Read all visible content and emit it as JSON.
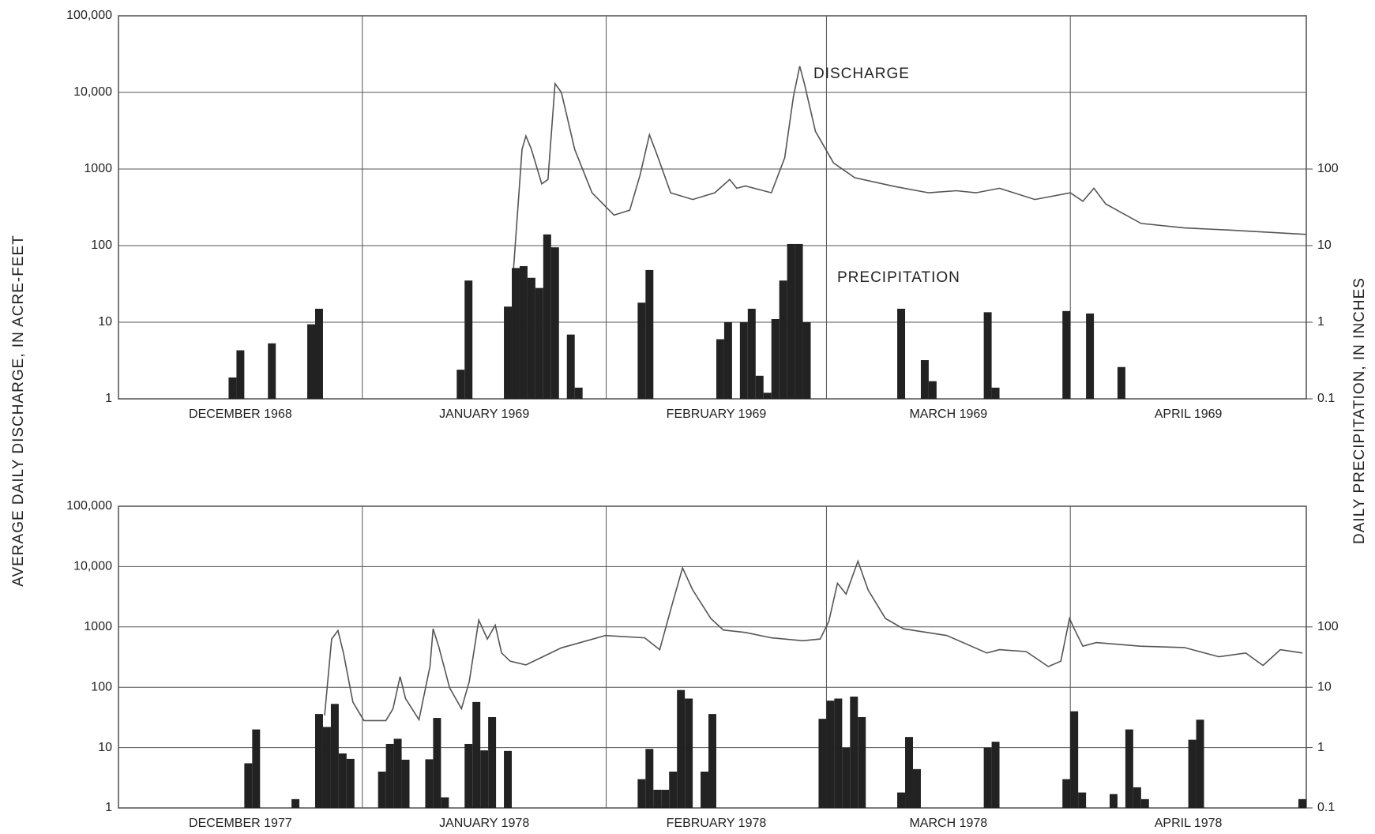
{
  "ylabel": "AVERAGE DAILY DISCHARGE, IN ACRE-FEET",
  "y2label": "DAILY PRECIPITATION, IN INCHES",
  "chart_data": [
    {
      "type": "combo",
      "categories": [
        "DECEMBER 1968",
        "JANUARY 1969",
        "FEBRUARY 1969",
        "MARCH 1969",
        "APRIL 1969"
      ],
      "xlim": [
        0,
        151
      ],
      "xticks": [
        0,
        31,
        62,
        90,
        121,
        151
      ],
      "ylim": [
        1,
        100000
      ],
      "yticks": [
        1,
        10,
        100,
        1000,
        {
          "value": 10000,
          "label": "10,000"
        },
        {
          "value": 100000,
          "label": "100,000"
        }
      ],
      "y2lim": [
        0.1,
        10000
      ],
      "y2ticks": [
        0.1,
        1,
        10,
        100
      ],
      "log_scale": true,
      "grid": true,
      "series": [
        {
          "name": "DISCHARGE",
          "type": "line",
          "color": "#555555",
          "x": [
            50.2,
            51.3,
            51.8,
            52.5,
            53.8,
            54.6,
            55.5,
            56.3,
            58,
            60.2,
            63,
            65,
            66.3,
            67.5,
            68.4,
            70.2,
            73,
            75.8,
            77.7,
            78.6,
            79.7,
            83,
            84.7,
            85.8,
            86.6,
            87.2,
            88.6,
            90.9,
            93.6,
            98.7,
            103,
            106.5,
            109,
            112,
            116.5,
            121,
            122.6,
            124,
            125.5,
            130,
            135.5,
            141,
            151
          ],
          "values": [
            46,
            1800,
            2700,
            1800,
            640,
            730,
            13000,
            10000,
            1800,
            490,
            250,
            290,
            830,
            2800,
            1600,
            490,
            400,
            490,
            730,
            560,
            600,
            490,
            1400,
            8800,
            22000,
            13000,
            3100,
            1200,
            770,
            590,
            490,
            520,
            490,
            560,
            400,
            490,
            380,
            560,
            350,
            195,
            170,
            160,
            140
          ]
        },
        {
          "name": "PRECIPITATION",
          "type": "bar",
          "axis": "y2",
          "color": "#222222",
          "x": [
            14,
            15,
            19,
            24,
            25,
            43,
            44,
            49,
            50,
            51,
            52,
            53,
            54,
            55,
            57,
            58,
            66,
            67,
            76,
            77,
            79,
            80,
            81,
            82,
            83,
            84,
            85,
            86,
            87,
            99,
            102,
            103,
            110,
            111,
            120,
            123,
            127
          ],
          "values": [
            0.19,
            0.43,
            0.53,
            0.94,
            1.5,
            0.24,
            3.5,
            1.6,
            5.1,
            5.4,
            3.8,
            2.8,
            14,
            9.5,
            0.69,
            0.14,
            1.8,
            4.8,
            0.6,
            1.0,
            1.0,
            1.5,
            0.2,
            0.12,
            1.1,
            3.5,
            10.5,
            10.5,
            1.0,
            1.5,
            0.32,
            0.17,
            1.35,
            0.14,
            1.4,
            1.3,
            0.26
          ]
        }
      ]
    },
    {
      "type": "combo",
      "categories": [
        "DECEMBER 1977",
        "JANUARY 1978",
        "FEBRUARY 1978",
        "MARCH 1978",
        "APRIL 1978"
      ],
      "xlim": [
        0,
        151
      ],
      "xticks": [
        0,
        31,
        62,
        90,
        121,
        151
      ],
      "ylim": [
        1,
        100000
      ],
      "yticks": [
        1,
        10,
        100,
        1000,
        {
          "value": 10000,
          "label": "10,000"
        },
        {
          "value": 100000,
          "label": "100,000"
        }
      ],
      "y2lim": [
        0.1,
        10000
      ],
      "y2ticks": [
        0.1,
        1,
        10,
        100
      ],
      "log_scale": true,
      "grid": true,
      "series": [
        {
          "type": "line",
          "color": "#555555",
          "x": [
            26.2,
            27.1,
            27.9,
            28.6,
            29.8,
            31.2,
            34,
            34.9,
            35.8,
            36.5,
            38.2,
            39.6,
            40,
            40.7,
            42.1,
            43.6,
            44.6,
            45.8,
            46.9,
            47.9,
            48.7,
            49.8,
            51.8,
            56.3,
            61.9,
            66.9,
            68.8,
            70.4,
            71.7,
            73,
            75.3,
            76.9,
            79.7,
            83,
            87,
            89.2,
            90.3,
            91.4,
            92.5,
            94,
            95.3,
            97.5,
            99.8,
            105.3,
            110.4,
            112,
            115.4,
            118.2,
            119.8,
            120.9,
            121.5,
            122.6,
            124.3,
            129.9,
            135.5,
            139.9,
            143.3,
            145.5,
            147.7,
            150.5
          ],
          "values": [
            34,
            630,
            870,
            370,
            57,
            28,
            28,
            44,
            150,
            65,
            29,
            220,
            930,
            480,
            98,
            44,
            125,
            1300,
            630,
            1070,
            370,
            270,
            235,
            450,
            720,
            660,
            420,
            2400,
            9500,
            4100,
            1380,
            890,
            810,
            660,
            590,
            630,
            1230,
            5300,
            3500,
            12300,
            4100,
            1380,
            930,
            720,
            370,
            420,
            390,
            220,
            270,
            1380,
            930,
            480,
            550,
            480,
            455,
            320,
            370,
            230,
            420,
            370
          ]
        },
        {
          "type": "bar",
          "axis": "y2",
          "color": "#222222",
          "x": [
            16,
            17,
            22,
            25,
            26,
            27,
            28,
            29,
            33,
            34,
            35,
            36,
            39,
            40,
            41,
            44,
            45,
            46,
            47,
            49,
            66,
            67,
            68,
            69,
            70,
            71,
            72,
            74,
            75,
            89,
            90,
            91,
            92,
            93,
            94,
            99,
            100,
            101,
            110,
            111,
            120,
            121,
            122,
            126,
            128,
            129,
            130,
            136,
            137,
            150
          ],
          "values": [
            0.55,
            2.0,
            0.14,
            3.6,
            2.2,
            5.3,
            0.8,
            0.65,
            0.4,
            1.15,
            1.4,
            0.63,
            0.64,
            3.1,
            0.15,
            1.15,
            5.7,
            0.9,
            3.2,
            0.88,
            0.3,
            0.95,
            0.2,
            0.2,
            0.4,
            9,
            6.5,
            0.4,
            3.6,
            3.0,
            6.0,
            6.5,
            1.0,
            7.0,
            3.2,
            0.18,
            1.5,
            0.44,
            1.0,
            1.25,
            0.3,
            4.0,
            0.18,
            0.17,
            2.0,
            0.22,
            0.14,
            1.35,
            2.9,
            0.14
          ]
        }
      ]
    }
  ]
}
